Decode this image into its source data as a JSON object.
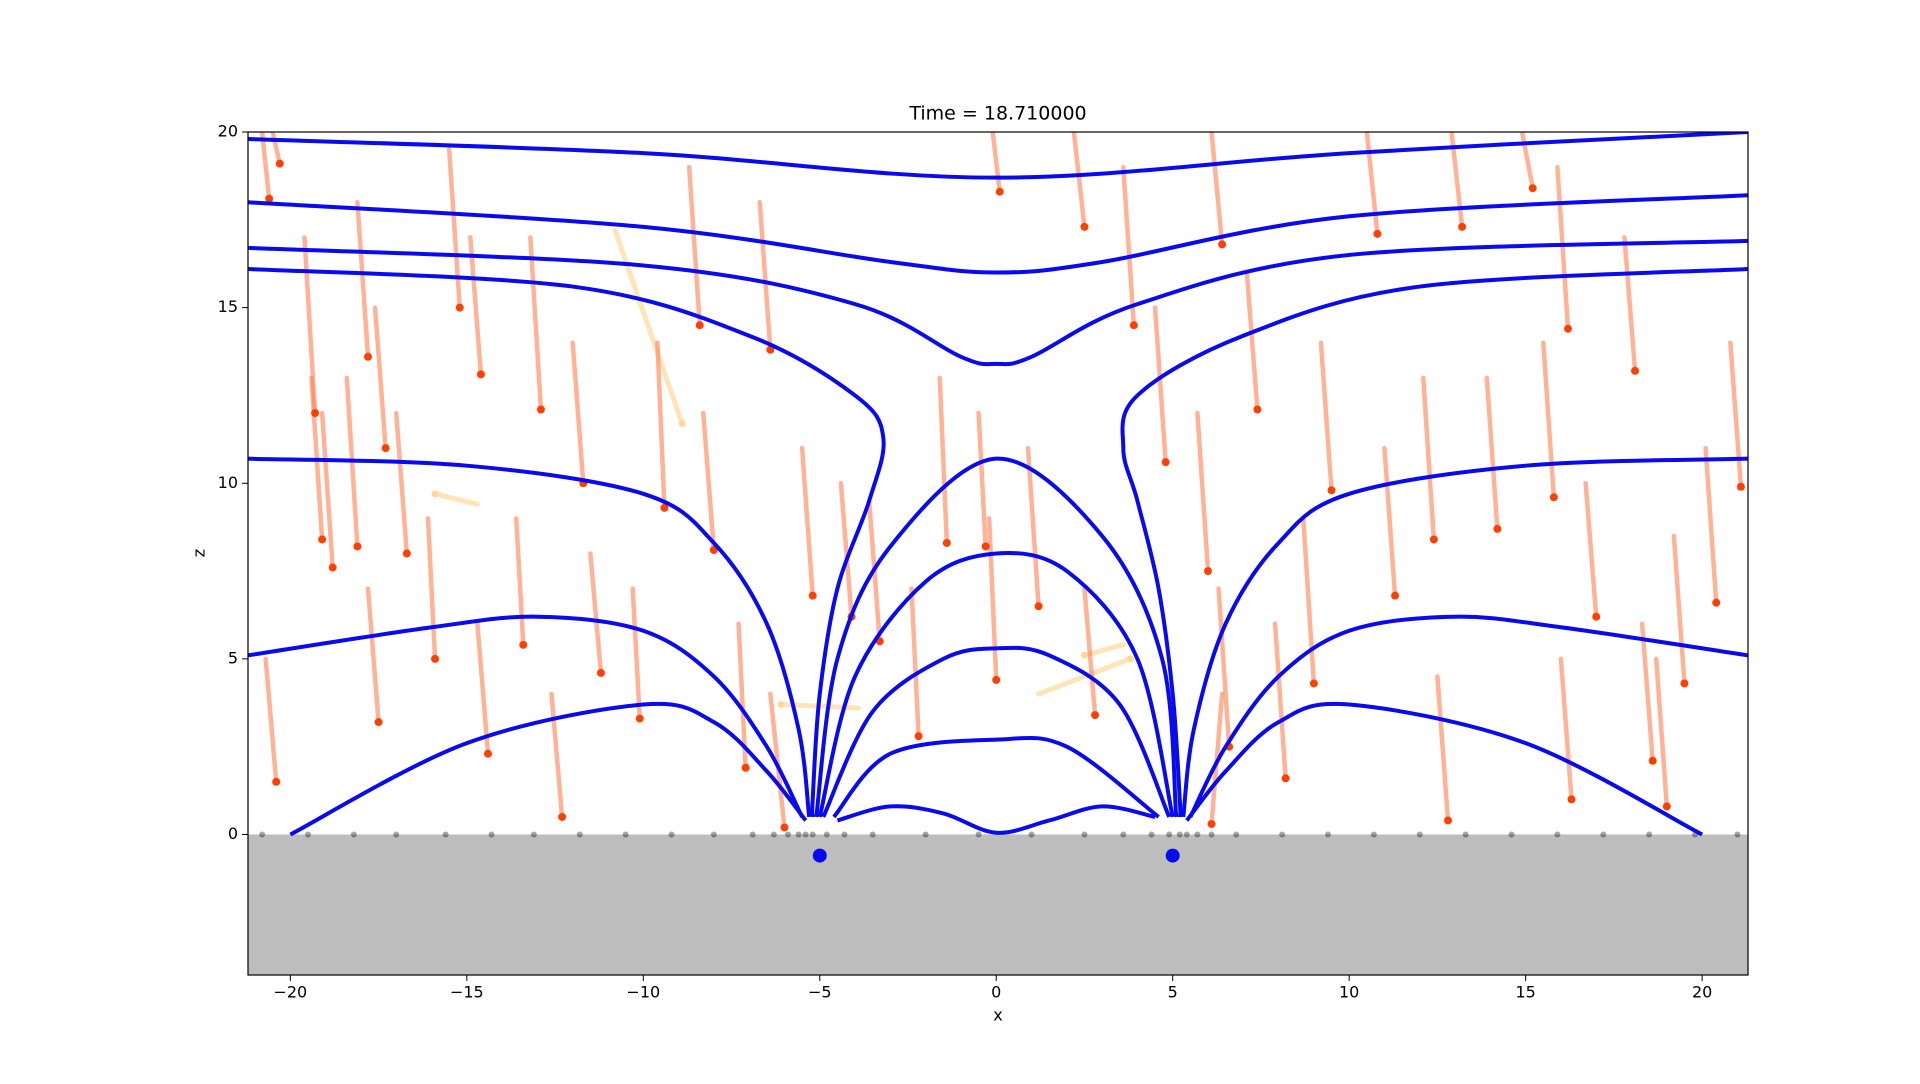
{
  "chart_data": {
    "type": "field",
    "title": "Time = 18.710000",
    "xlabel": "x",
    "ylabel": "z",
    "xlim": [
      -21.2,
      21.3
    ],
    "ylim": [
      -4,
      20
    ],
    "xticks": [
      {
        "value": -20,
        "label": "−20"
      },
      {
        "value": -15,
        "label": "−15"
      },
      {
        "value": -10,
        "label": "−10"
      },
      {
        "value": -5,
        "label": "−5"
      },
      0,
      5,
      10,
      15,
      20
    ],
    "yticks": [
      0,
      5,
      10,
      15,
      20
    ],
    "ground_color": "#bdbdbd",
    "field_color": "#0a0aee",
    "field_lines": [
      {
        "x": [
          -21.2,
          -10,
          0,
          10,
          21.3
        ],
        "z": [
          19.8,
          19.4,
          18.7,
          19.4,
          20.0
        ]
      },
      {
        "x": [
          -21.2,
          -10,
          -3,
          0,
          3,
          10,
          21.3
        ],
        "z": [
          18.0,
          17.3,
          16.3,
          16.0,
          16.3,
          17.6,
          18.2
        ]
      },
      {
        "x": [
          -21.2,
          -10,
          -4,
          -1,
          0,
          1,
          4,
          10,
          21.3
        ],
        "z": [
          16.7,
          16.2,
          15.1,
          13.6,
          13.4,
          13.6,
          15.1,
          16.5,
          16.9
        ]
      },
      {
        "x": [
          -21.2,
          -12,
          -7,
          -4,
          -3.2,
          -3.6,
          -4.5,
          -5,
          -5.2,
          -5.2
        ],
        "z": [
          16.1,
          15.6,
          14.2,
          12.5,
          11.3,
          9.5,
          7,
          4,
          1,
          0.5
        ]
      },
      {
        "x": [
          21.3,
          12,
          7,
          4,
          3.6,
          4,
          4.6,
          5,
          5.2,
          5.2
        ],
        "z": [
          16.1,
          15.6,
          14.2,
          12.5,
          11.0,
          9.5,
          7,
          4,
          1,
          0.5
        ]
      },
      {
        "x": [
          -21.2,
          -15,
          -10,
          -8,
          -6.5,
          -5.6,
          -5.3
        ],
        "z": [
          10.7,
          10.5,
          9.7,
          8.3,
          6,
          3,
          0.5
        ]
      },
      {
        "x": [
          21.3,
          15,
          10,
          8,
          6.5,
          5.6,
          5.3
        ],
        "z": [
          10.7,
          10.5,
          9.7,
          8.3,
          6,
          3,
          0.5
        ]
      },
      {
        "x": [
          -21.2,
          -16,
          -13,
          -10,
          -8,
          -6.5,
          -5.5
        ],
        "z": [
          5.1,
          5.9,
          6.2,
          5.8,
          4.5,
          2.5,
          0.5
        ]
      },
      {
        "x": [
          21.3,
          16,
          13,
          10,
          8,
          6.5,
          5.5
        ],
        "z": [
          5.1,
          5.9,
          6.2,
          5.8,
          4.5,
          2.5,
          0.5
        ]
      },
      {
        "x": [
          -20,
          -15,
          -10,
          -8,
          -6.5,
          -5.4
        ],
        "z": [
          0,
          2.6,
          3.7,
          3.2,
          1.8,
          0.4
        ]
      },
      {
        "x": [
          20,
          15,
          10,
          8,
          6.5,
          5.4
        ],
        "z": [
          0,
          2.6,
          3.7,
          3.2,
          1.8,
          0.4
        ]
      },
      {
        "x": [
          -5.1,
          -4.5,
          -3,
          0,
          3,
          4.7,
          5.1
        ],
        "z": [
          0.5,
          5,
          8.2,
          10.7,
          8.5,
          5,
          0.5
        ]
      },
      {
        "x": [
          -5,
          -4,
          -2,
          0,
          2,
          4,
          5
        ],
        "z": [
          0.5,
          4.5,
          7.2,
          8.0,
          7.5,
          5,
          0.5
        ]
      },
      {
        "x": [
          -4.9,
          -3.5,
          -1.5,
          0,
          1.5,
          3.5,
          4.9
        ],
        "z": [
          0.5,
          3.5,
          5,
          5.3,
          5.1,
          3.7,
          0.5
        ]
      },
      {
        "x": [
          -4.6,
          -3,
          0,
          2,
          4.6
        ],
        "z": [
          0.5,
          2.3,
          2.7,
          2.5,
          0.5
        ]
      },
      {
        "x": [
          -4.5,
          -3,
          -1.5,
          0,
          1.5,
          3,
          4.5
        ],
        "z": [
          0.4,
          0.8,
          0.6,
          0.05,
          0.4,
          0.8,
          0.5
        ]
      }
    ],
    "particles": {
      "color": "#ff4000",
      "trail_color": "#ff7f50",
      "x": [
        -20.6,
        -20.3,
        -19.3,
        -19.1,
        -18.8,
        -18.1,
        -17.8,
        -17.3,
        -16.7,
        -15.9,
        -15.2,
        -14.6,
        -13.4,
        -12.9,
        -11.7,
        -11.2,
        -10.1,
        -9.4,
        -8.4,
        -8.0,
        -7.1,
        -6.4,
        -5.2,
        -4.1,
        -3.3,
        -2.2,
        -1.4,
        -0.3,
        0.0,
        0.1,
        1.2,
        2.5,
        2.8,
        3.9,
        4.8,
        6.0,
        6.4,
        6.6,
        7.4,
        8.2,
        9.0,
        9.5,
        10.8,
        11.3,
        12.4,
        13.2,
        14.2,
        15.2,
        15.8,
        16.2,
        17.0,
        18.1,
        18.6,
        19.5,
        20.4,
        21.1,
        -20.4,
        -17.5,
        -14.4,
        -12.3,
        12.8,
        16.3,
        19.0,
        -6.0,
        6.1
      ],
      "z": [
        18.1,
        19.1,
        12.0,
        8.4,
        7.6,
        8.2,
        13.6,
        11.0,
        8.0,
        5.0,
        15.0,
        13.1,
        5.4,
        12.1,
        10.0,
        4.6,
        3.3,
        9.3,
        14.5,
        8.1,
        1.9,
        13.8,
        6.8,
        6.2,
        5.5,
        2.8,
        8.3,
        8.2,
        4.4,
        18.3,
        6.5,
        17.3,
        3.4,
        14.5,
        10.6,
        7.5,
        16.8,
        2.5,
        12.1,
        1.6,
        4.3,
        9.8,
        17.1,
        6.8,
        8.4,
        17.3,
        8.7,
        18.4,
        9.6,
        14.4,
        6.2,
        13.2,
        2.1,
        4.3,
        6.6,
        9.9,
        1.5,
        3.2,
        2.3,
        0.5,
        0.4,
        1.0,
        0.8,
        0.2,
        0.3
      ],
      "tail_x": [
        -20.8,
        -20.5,
        -19.6,
        -19.4,
        -19.1,
        -18.4,
        -18.1,
        -17.6,
        -17.0,
        -16.1,
        -15.5,
        -14.9,
        -13.6,
        -13.2,
        -12.0,
        -11.5,
        -10.3,
        -9.6,
        -8.7,
        -8.3,
        -7.3,
        -6.7,
        -5.5,
        -4.4,
        -3.6,
        -2.4,
        -1.6,
        -0.5,
        -0.2,
        -0.1,
        0.9,
        2.2,
        2.5,
        3.6,
        4.5,
        5.7,
        6.1,
        6.3,
        7.1,
        7.9,
        8.7,
        9.2,
        10.5,
        11.0,
        12.1,
        12.9,
        13.9,
        14.9,
        15.5,
        15.9,
        16.7,
        17.8,
        18.3,
        19.2,
        20.1,
        20.8,
        -20.7,
        -17.8,
        -14.7,
        -12.6,
        12.5,
        16.0,
        18.7,
        -6.4,
        6.4
      ],
      "tail_z": [
        20,
        20,
        17,
        13,
        12,
        13,
        18,
        15,
        12,
        9,
        19.5,
        17,
        9,
        17,
        14,
        8,
        7,
        14,
        19,
        12,
        6,
        18,
        11,
        10,
        9.5,
        7,
        13,
        12,
        9,
        20,
        11,
        20,
        7,
        19,
        15,
        12,
        20,
        7,
        16,
        6,
        9,
        14,
        20,
        11,
        13,
        20,
        13,
        20,
        14,
        19,
        10,
        17,
        6,
        8.5,
        11,
        14,
        5,
        7,
        6,
        4,
        4.5,
        5,
        5,
        4,
        4
      ]
    },
    "faded_particles": {
      "color": "#ffd89a",
      "x": [
        -15.9,
        -8.9,
        3.8,
        2.5,
        -6.1
      ],
      "z": [
        9.7,
        11.7,
        5.0,
        5.1,
        3.7
      ],
      "tail_x": [
        -14.7,
        -10.8,
        1.2,
        3.6,
        -3.9
      ],
      "tail_z": [
        9.4,
        17.2,
        4.0,
        5.4,
        3.6
      ]
    },
    "deposited": {
      "color": "#000000",
      "x": [
        -20.8,
        -19.5,
        -18.2,
        -17.0,
        -15.6,
        -14.3,
        -13.1,
        -11.8,
        -10.5,
        -9.2,
        -8.0,
        -6.9,
        -6.3,
        -5.9,
        -5.6,
        -5.4,
        -5.2,
        -4.8,
        -4.3,
        -3.5,
        -2.0,
        -0.5,
        1.0,
        2.5,
        3.6,
        4.4,
        4.9,
        5.2,
        5.4,
        5.7,
        6.1,
        6.8,
        8.1,
        9.4,
        10.7,
        12.0,
        13.3,
        14.6,
        15.9,
        17.2,
        18.5,
        19.8,
        21.0
      ]
    },
    "sources": {
      "color": "#0a0aee",
      "x": [
        -5,
        5
      ],
      "z": [
        -0.6,
        -0.6
      ]
    }
  }
}
